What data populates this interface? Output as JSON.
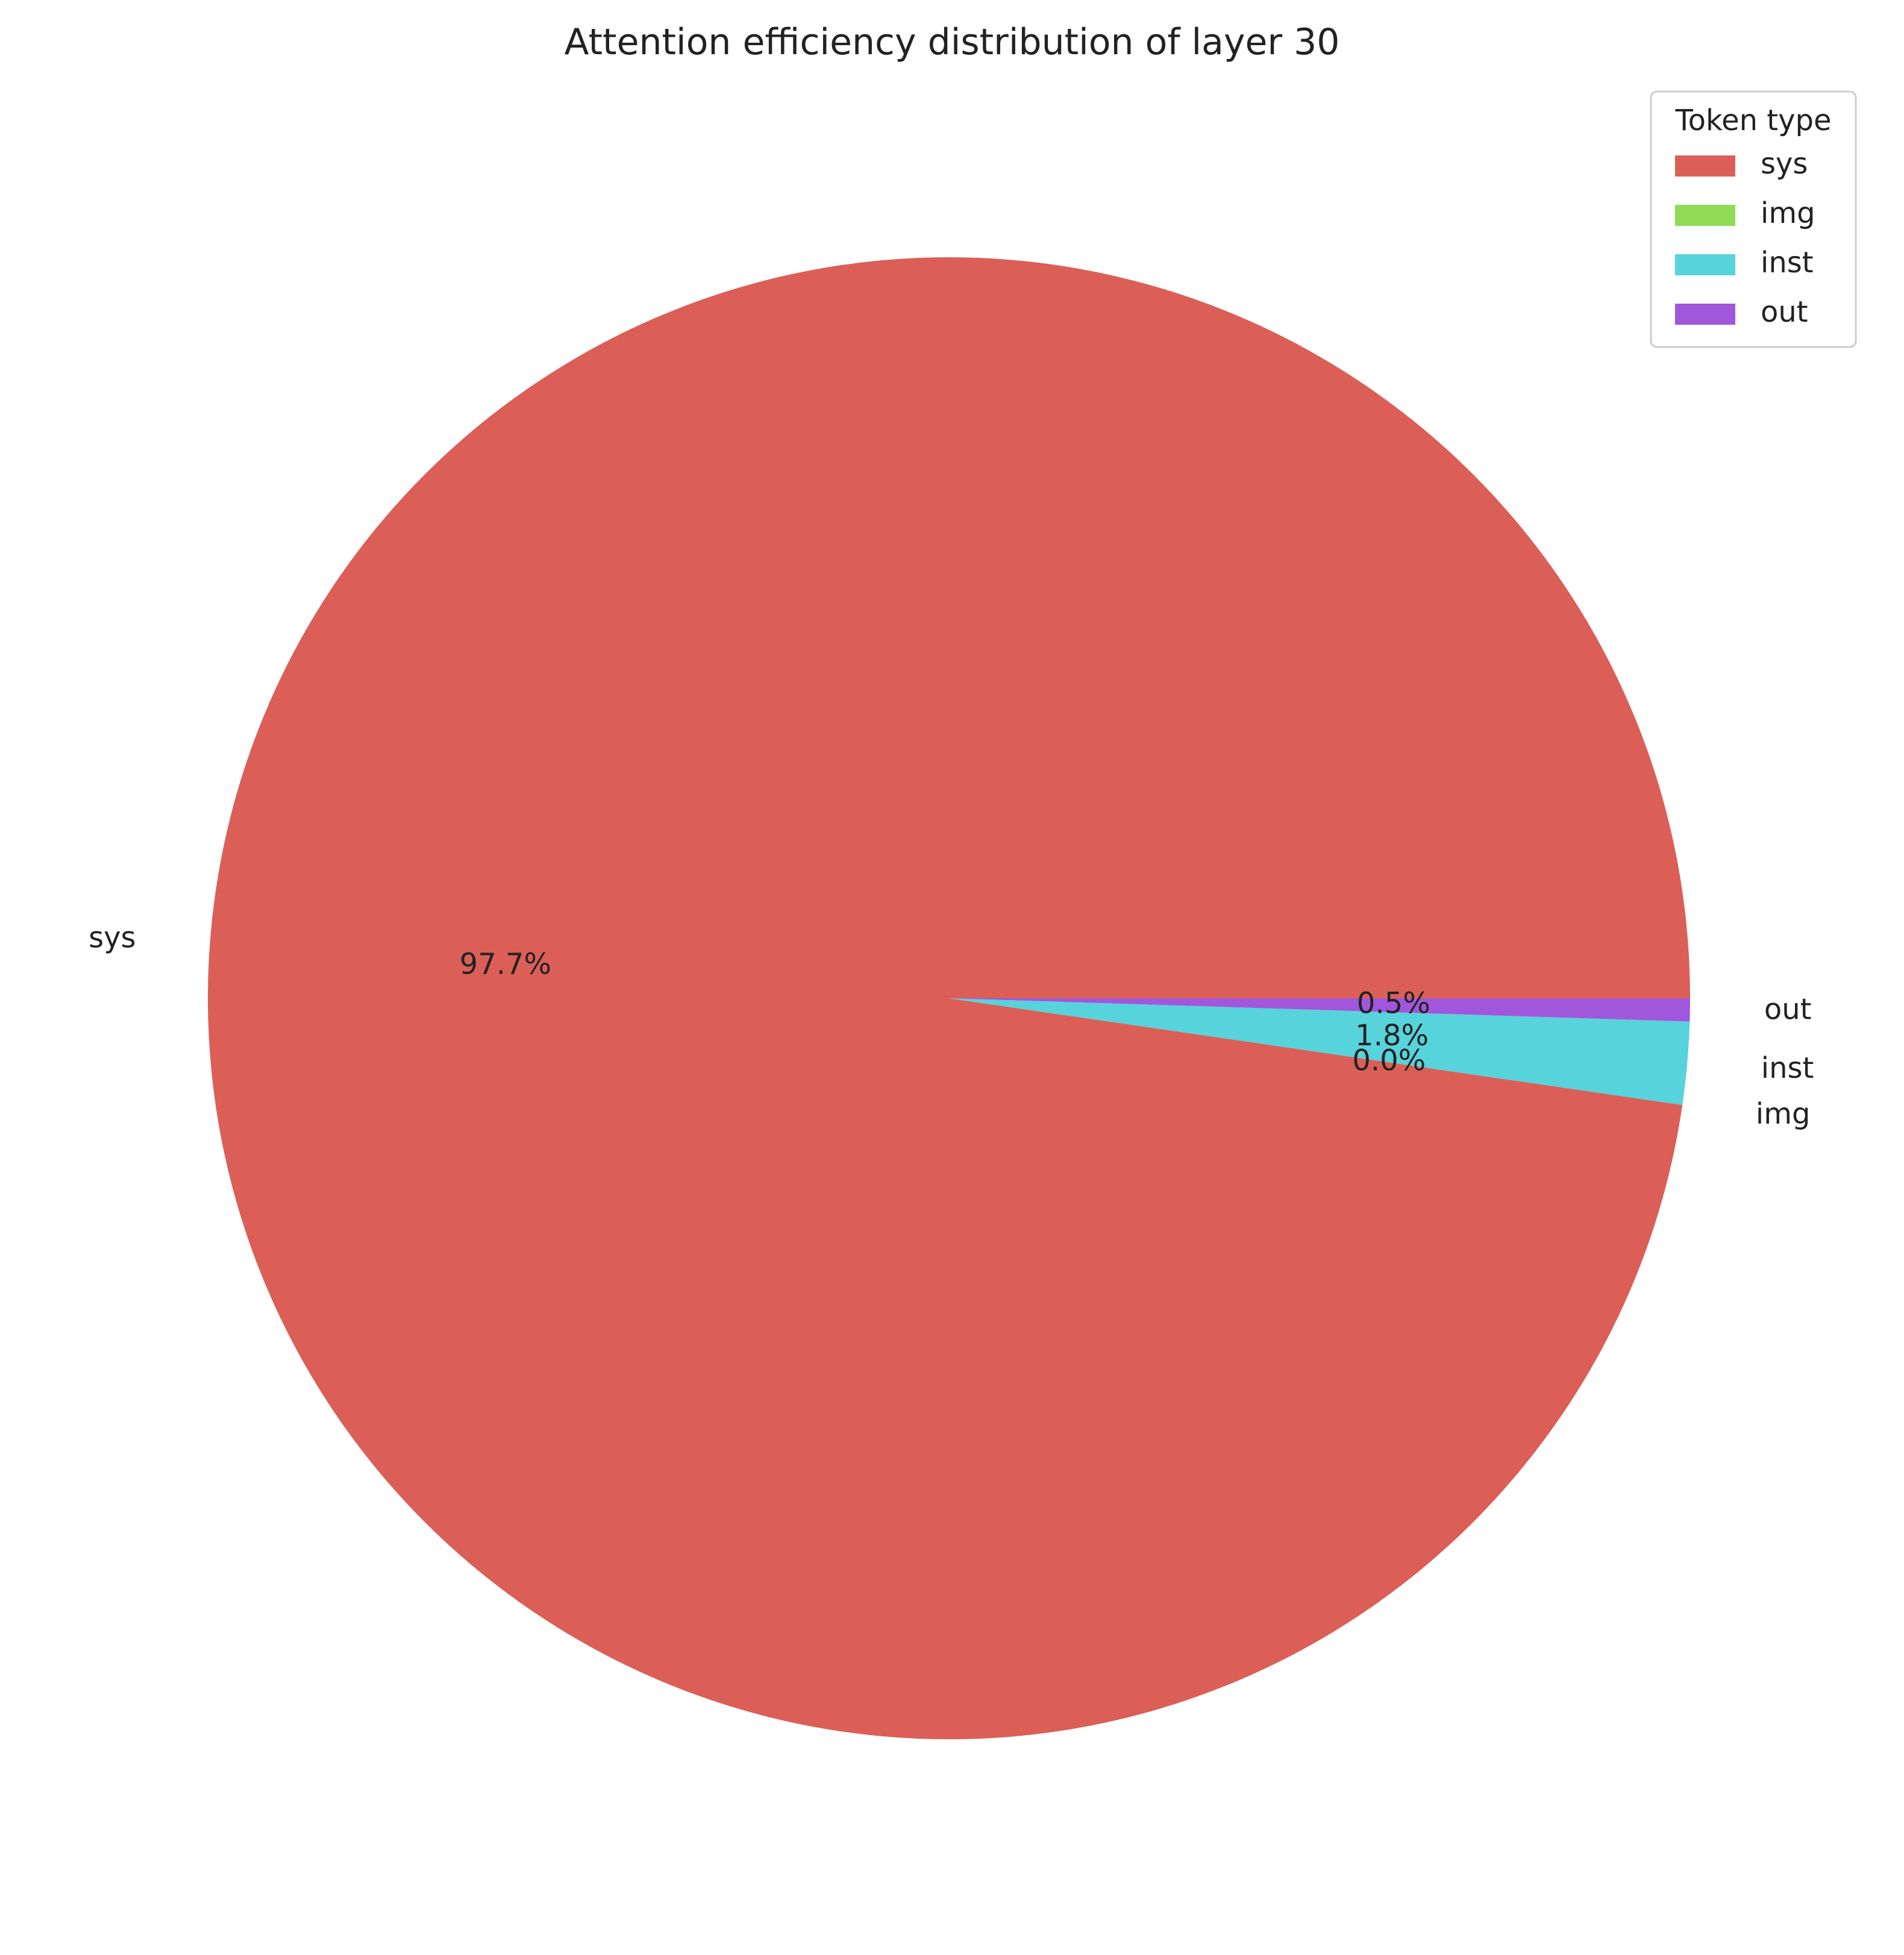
{
  "chart_data": {
    "type": "pie",
    "title": "Attention efficiency distribution of layer 30",
    "categories": [
      "sys",
      "img",
      "inst",
      "out"
    ],
    "values": [
      97.7,
      0.0,
      1.8,
      0.5
    ],
    "percent_labels": [
      "97.7%",
      "0.0%",
      "1.8%",
      "0.5%"
    ],
    "colors": [
      "#db5f57",
      "#91db57",
      "#57d3db",
      "#a157db"
    ],
    "legend": {
      "title": "Token type",
      "position": "top-right",
      "entries": [
        "sys",
        "img",
        "inst",
        "out"
      ]
    },
    "start_angle_deg": 0,
    "direction": "counterclockwise"
  }
}
